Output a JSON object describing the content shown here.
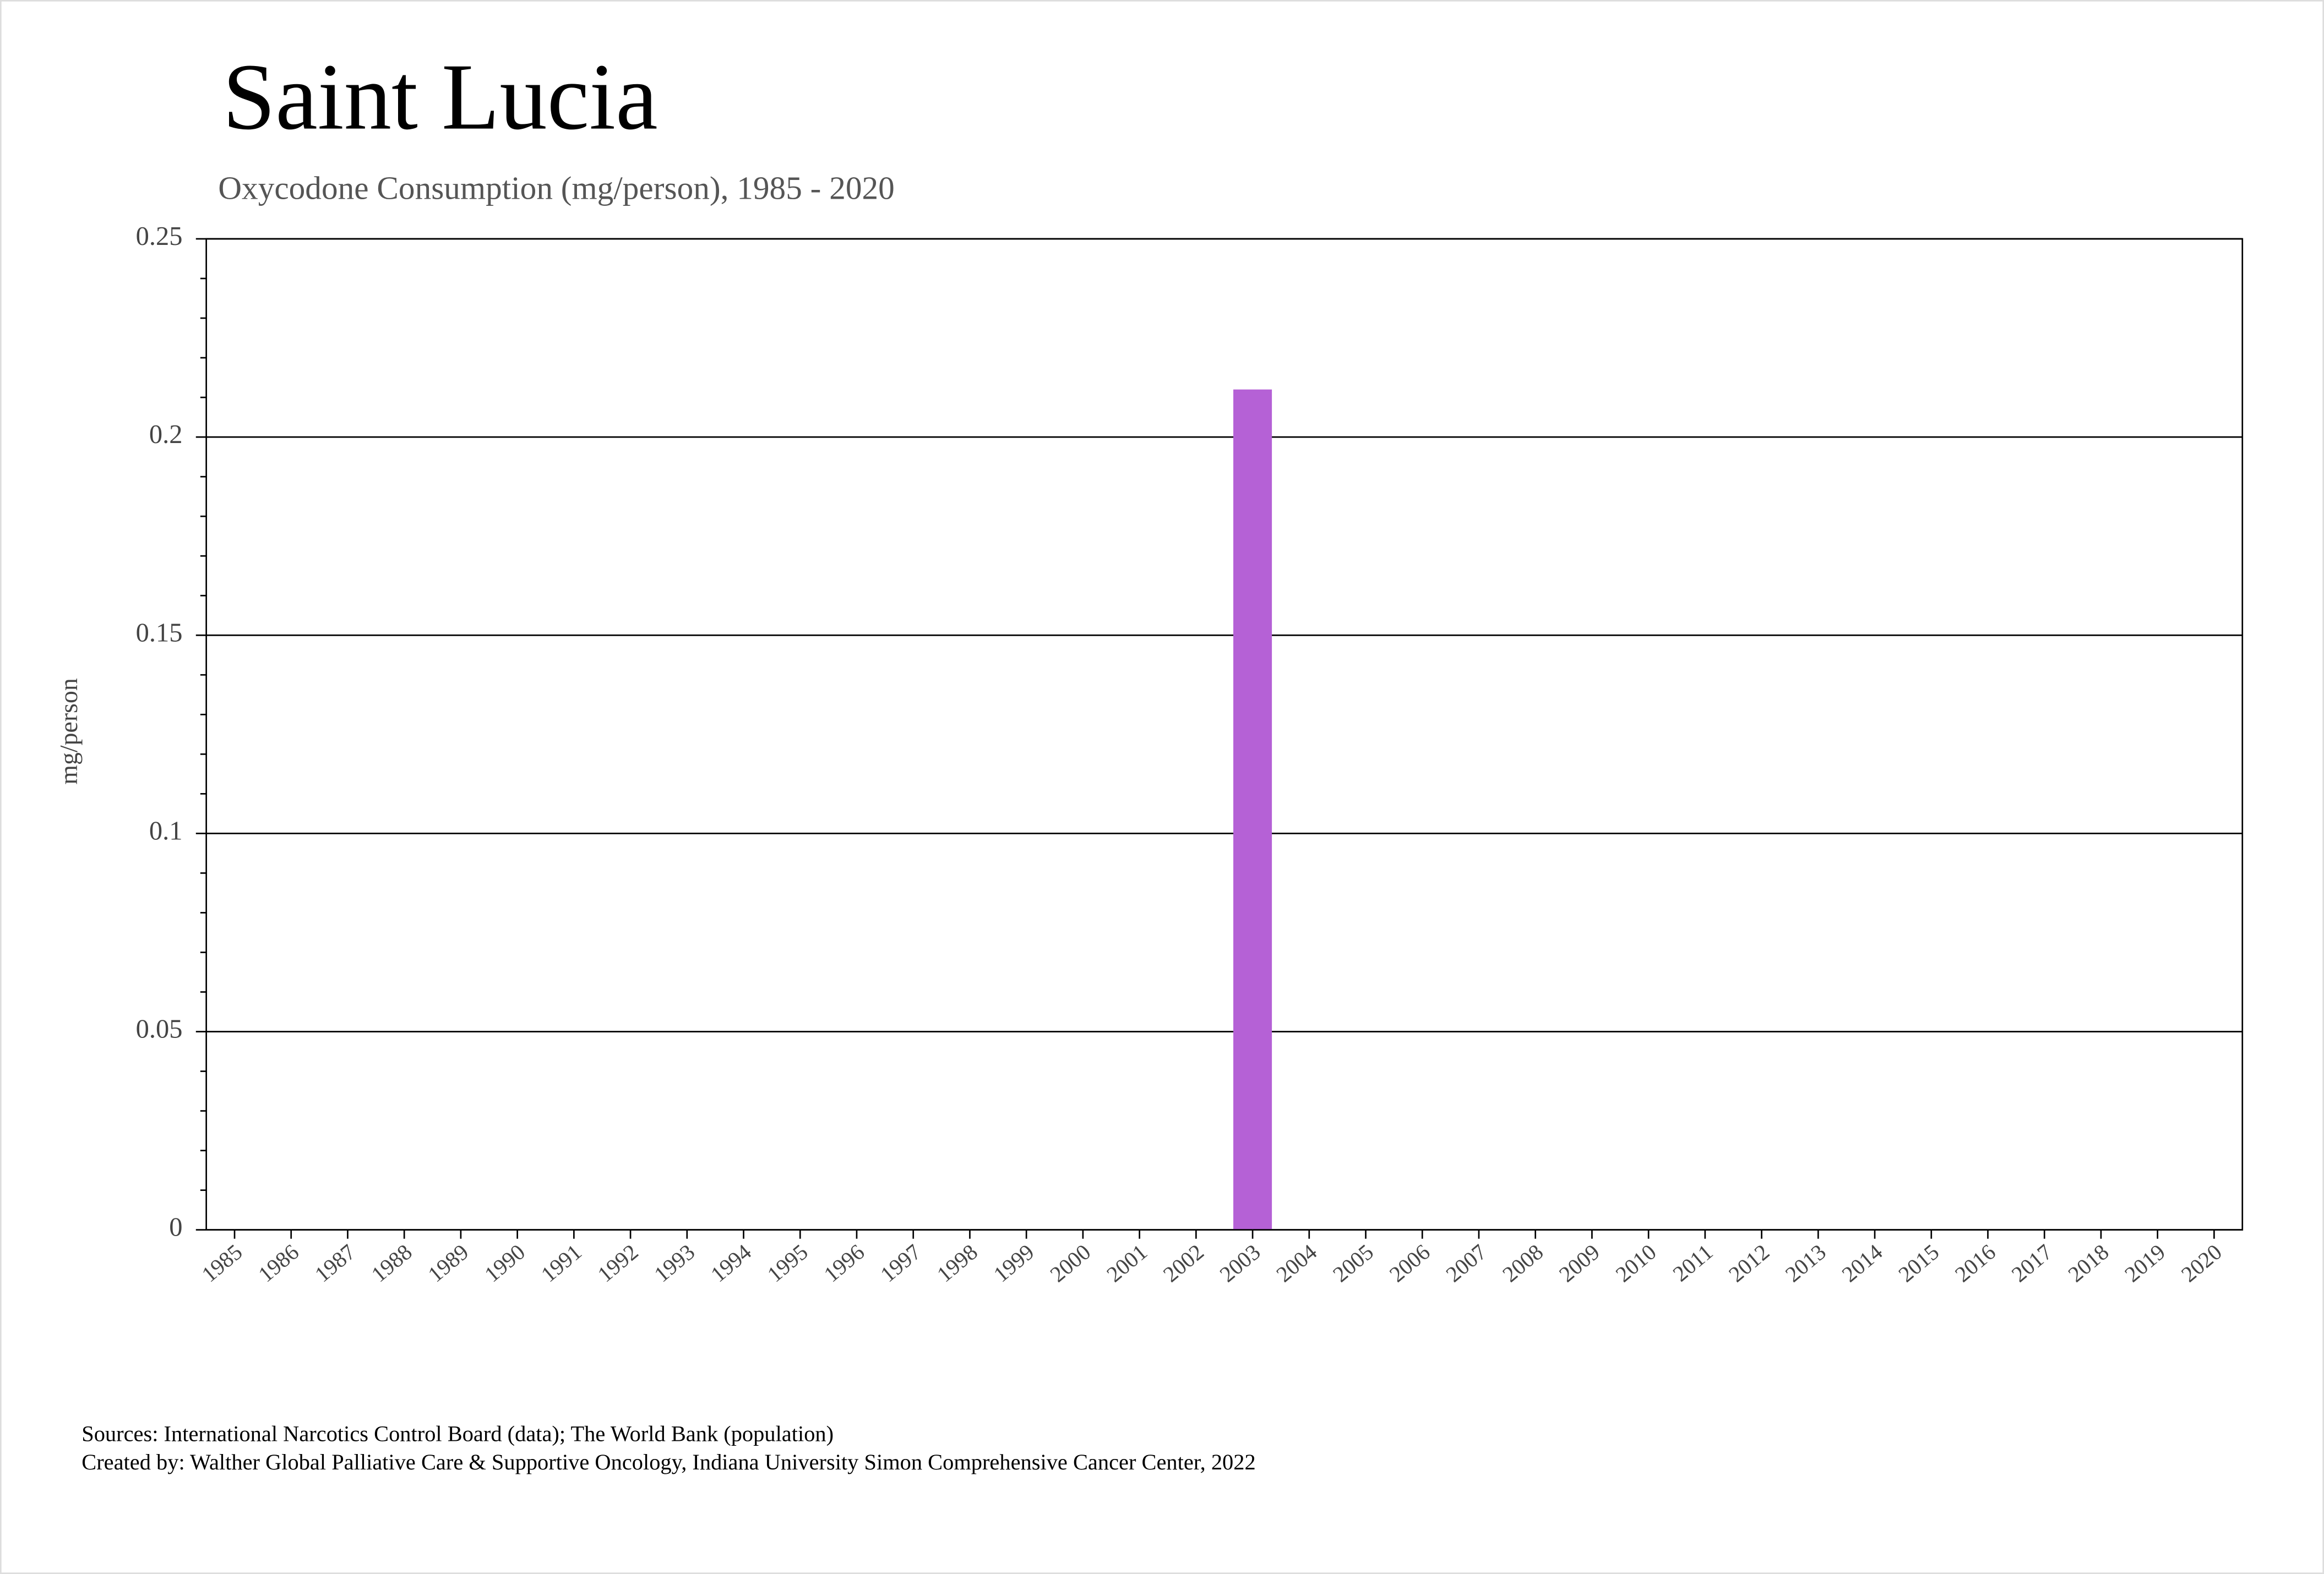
{
  "chart_data": {
    "type": "bar",
    "title": "Saint Lucia",
    "subtitle": "Oxycodone Consumption (mg/person), 1985 - 2020",
    "y_label": "mg/person",
    "categories": [
      "1985",
      "1986",
      "1987",
      "1988",
      "1989",
      "1990",
      "1991",
      "1992",
      "1993",
      "1994",
      "1995",
      "1996",
      "1997",
      "1998",
      "1999",
      "2000",
      "2001",
      "2002",
      "2003",
      "2004",
      "2005",
      "2006",
      "2007",
      "2008",
      "2009",
      "2010",
      "2011",
      "2012",
      "2013",
      "2014",
      "2015",
      "2016",
      "2017",
      "2018",
      "2019",
      "2020"
    ],
    "values": [
      0,
      0,
      0,
      0,
      0,
      0,
      0,
      0,
      0,
      0,
      0,
      0,
      0,
      0,
      0,
      0,
      0,
      0,
      0.212,
      0,
      0,
      0,
      0,
      0,
      0,
      0,
      0,
      0,
      0,
      0,
      0,
      0,
      0,
      0,
      0,
      0
    ],
    "color": "#b561d6",
    "ylim": [
      0,
      0.25
    ],
    "yticks": [
      0,
      0.05,
      0.1,
      0.15,
      0.2,
      0.25
    ],
    "grid": true,
    "sources": [
      "Sources: International Narcotics Control Board (data); The World Bank (population)",
      "Created by: Walther Global Palliative Care & Supportive Oncology, Indiana University Simon Comprehensive Cancer Center, 2022"
    ]
  }
}
